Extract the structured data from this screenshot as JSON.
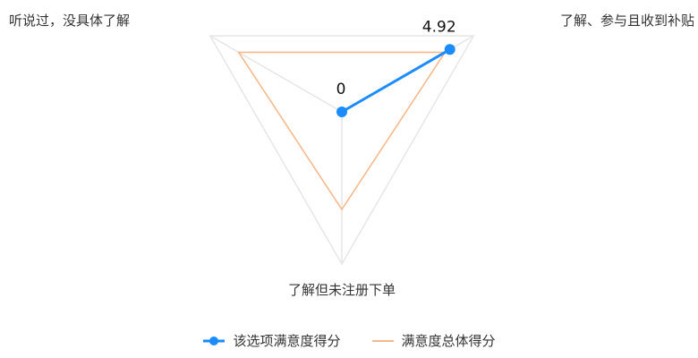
{
  "chart_data": {
    "type": "radar",
    "title": "",
    "axes": [
      "听说过，没具体了解",
      "了解、参与且收到补贴",
      "了解但未注册下单"
    ],
    "range": [
      0,
      6
    ],
    "grid_levels": 1,
    "legend_position": "bottom",
    "series": [
      {
        "name": "该选项满意度得分",
        "color": "#1a8cff",
        "values": [
          0,
          4.92,
          0
        ],
        "labels": [
          "0",
          "4.92",
          null
        ],
        "markers": true
      },
      {
        "name": "满意度总体得分",
        "color": "#f7b98b",
        "values": [
          4.7,
          4.7,
          3.85
        ],
        "labels": [
          null,
          null,
          null
        ],
        "markers": false
      }
    ]
  },
  "colors": {
    "grid": "#e6e6e6",
    "text": "#333333"
  }
}
